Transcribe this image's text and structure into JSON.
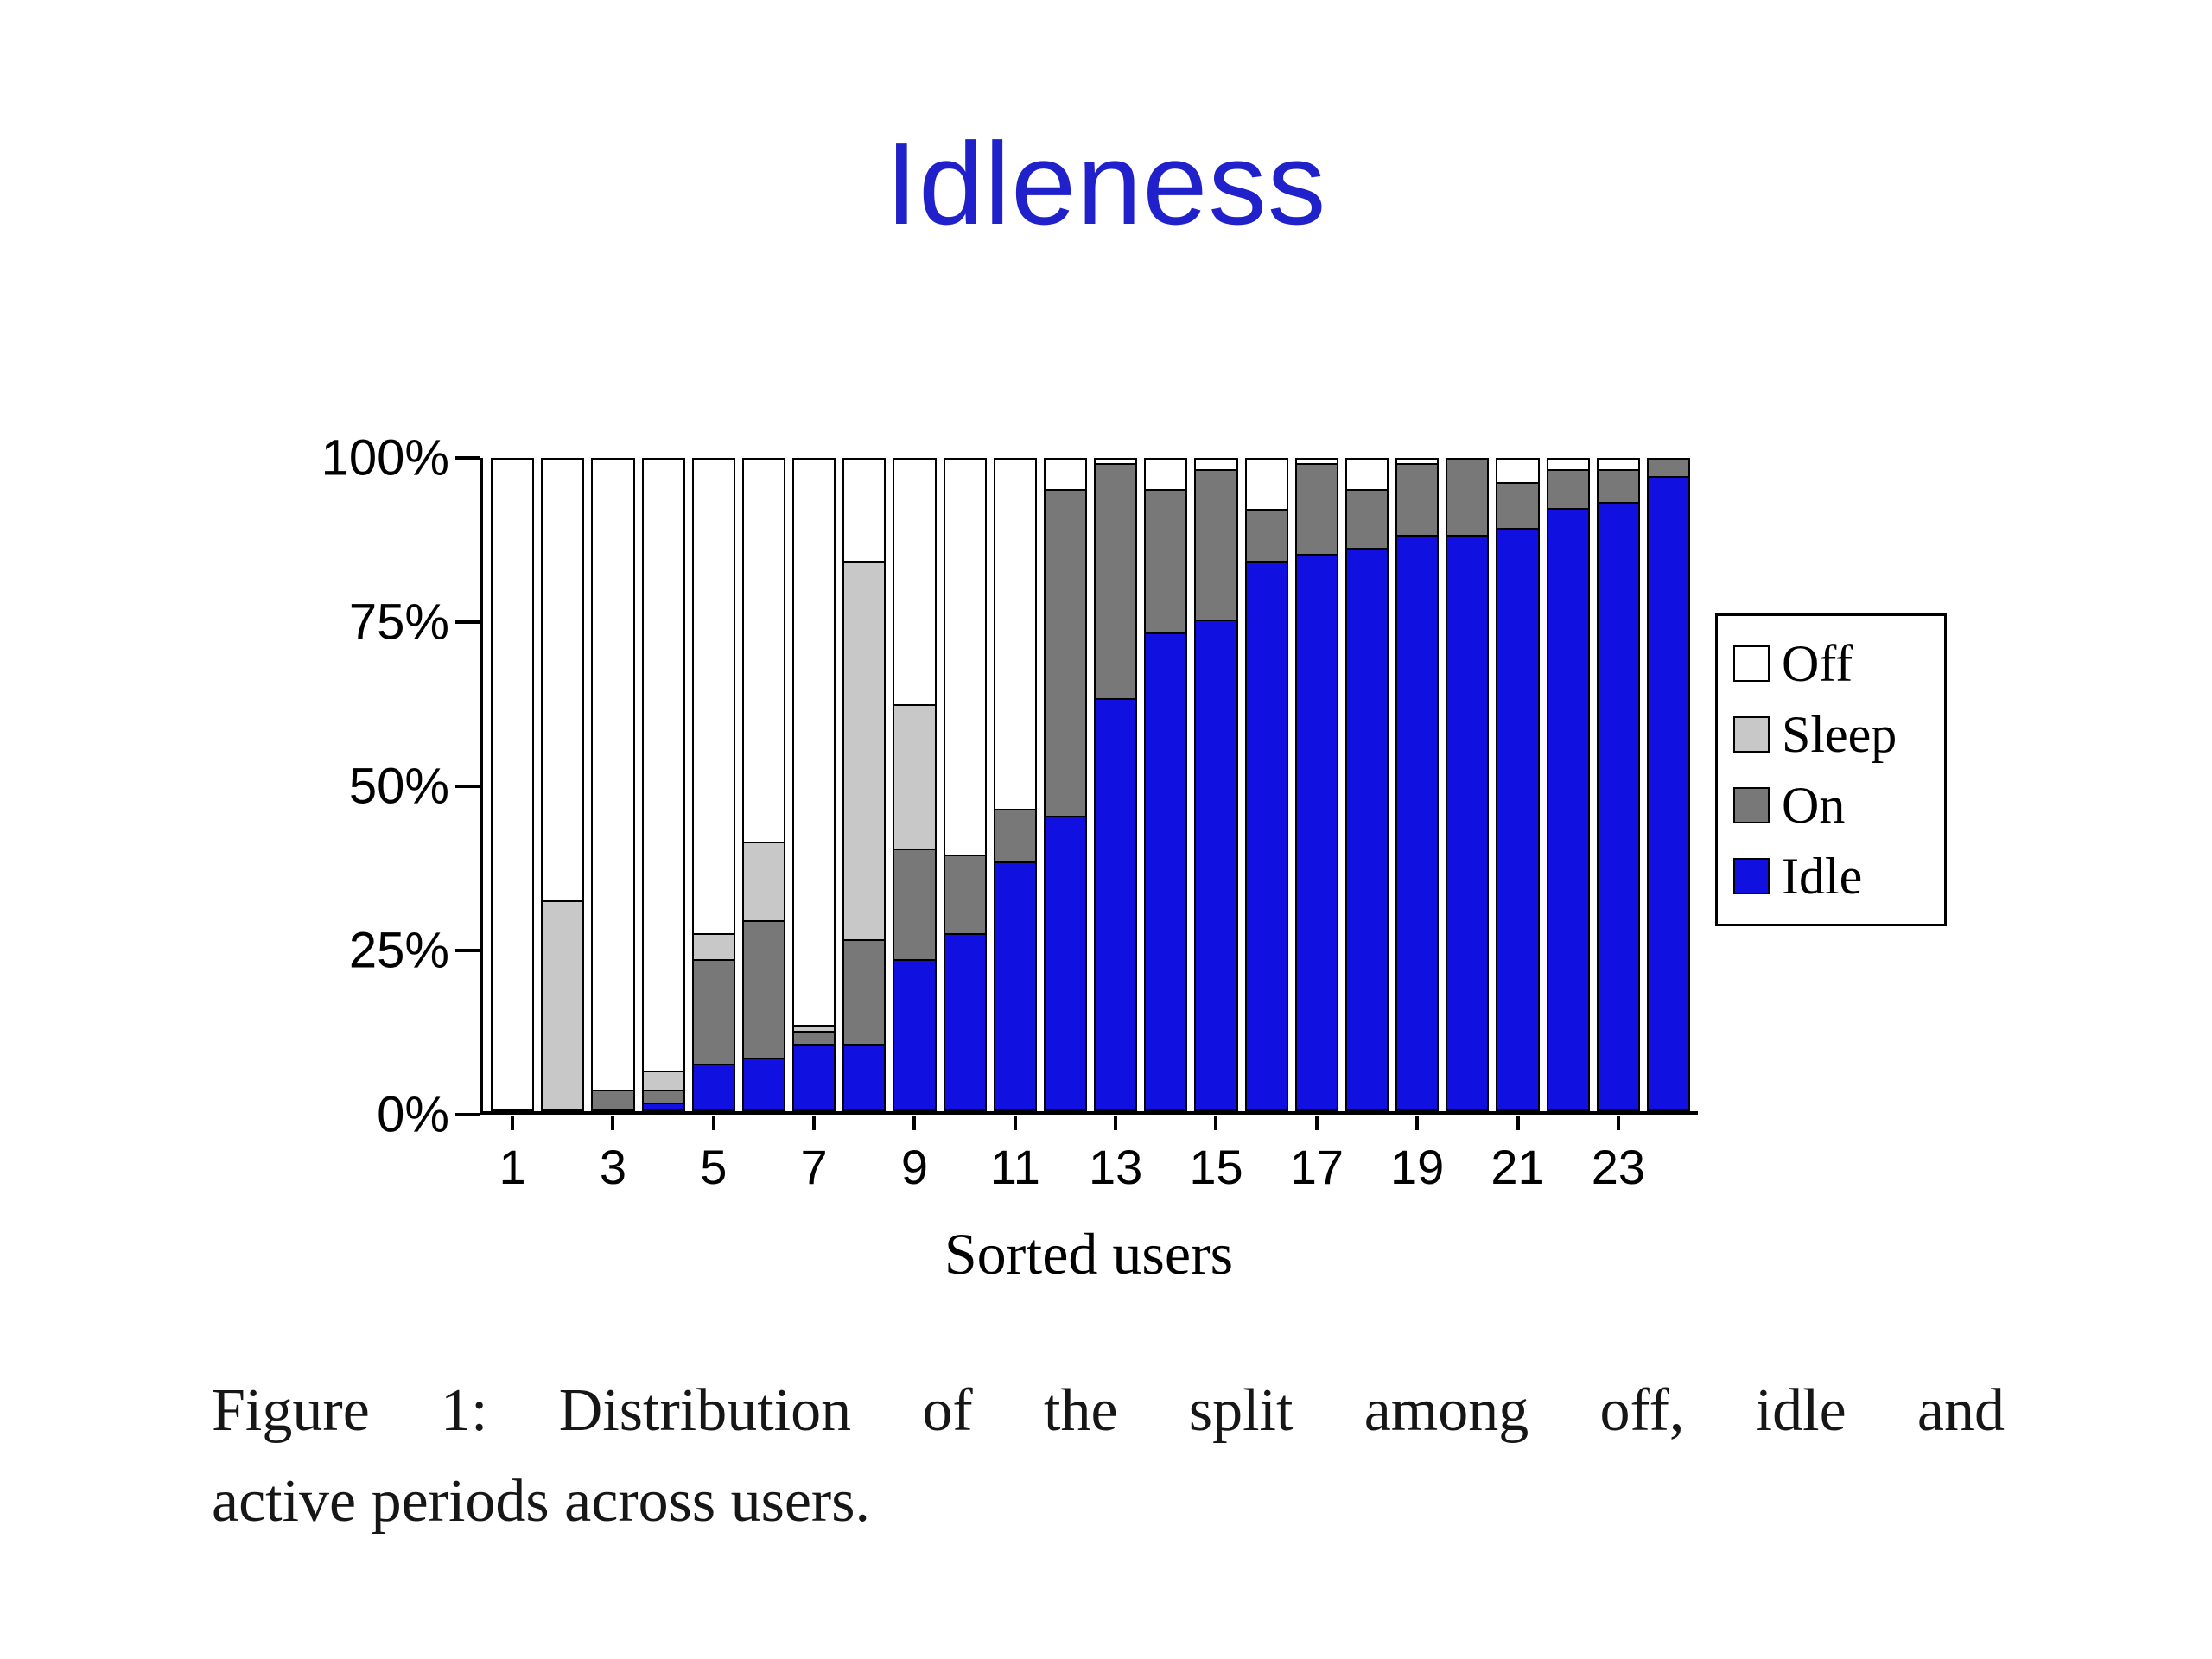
{
  "slide": {
    "title": "Idleness",
    "title_color": "#2121CC",
    "caption_lines": [
      "Figure 1: Distribution of the split among off, idle and",
      "active periods across users."
    ]
  },
  "chart_data": {
    "type": "bar",
    "stacked": true,
    "title": "",
    "xlabel": "Sorted users",
    "ylabel": "",
    "ylim": [
      0,
      100
    ],
    "y_ticks": [
      "100%",
      "75%",
      "50%",
      "25%",
      "0%"
    ],
    "x_tick_labels": [
      "1",
      "3",
      "5",
      "7",
      "9",
      "11",
      "13",
      "15",
      "17",
      "19",
      "21",
      "23"
    ],
    "stack_order_bottom_to_top": [
      "Idle",
      "On",
      "Sleep",
      "Off"
    ],
    "legend": {
      "position": "right",
      "entries": [
        {
          "label": "Off",
          "color": "#FFFFFF"
        },
        {
          "label": "Sleep",
          "color": "#C8C8C8"
        },
        {
          "label": "On",
          "color": "#787878"
        },
        {
          "label": "Idle",
          "color": "#1010E0"
        }
      ]
    },
    "series": [
      {
        "name": "Off",
        "color": "#FFFFFF",
        "values": [
          100,
          68,
          97,
          94,
          73,
          59,
          87,
          16,
          38,
          61,
          54,
          5,
          1,
          5,
          2,
          8,
          1,
          5,
          1,
          0,
          4,
          2,
          2,
          0
        ]
      },
      {
        "name": "Sleep",
        "color": "#C8C8C8",
        "values": [
          0,
          32,
          0,
          3,
          4,
          12,
          1,
          58,
          22,
          0,
          0,
          0,
          0,
          0,
          0,
          0,
          0,
          0,
          0,
          0,
          0,
          0,
          0,
          0
        ]
      },
      {
        "name": "On",
        "color": "#787878",
        "values": [
          0,
          0,
          3,
          2,
          16,
          21,
          2,
          16,
          17,
          12,
          8,
          50,
          36,
          22,
          23,
          8,
          14,
          9,
          11,
          12,
          7,
          6,
          5,
          3
        ]
      },
      {
        "name": "Idle",
        "color": "#1010E0",
        "values": [
          0,
          0,
          0,
          1,
          7,
          8,
          10,
          10,
          23,
          27,
          38,
          45,
          63,
          73,
          75,
          84,
          85,
          86,
          88,
          88,
          89,
          92,
          93,
          97
        ]
      }
    ]
  }
}
